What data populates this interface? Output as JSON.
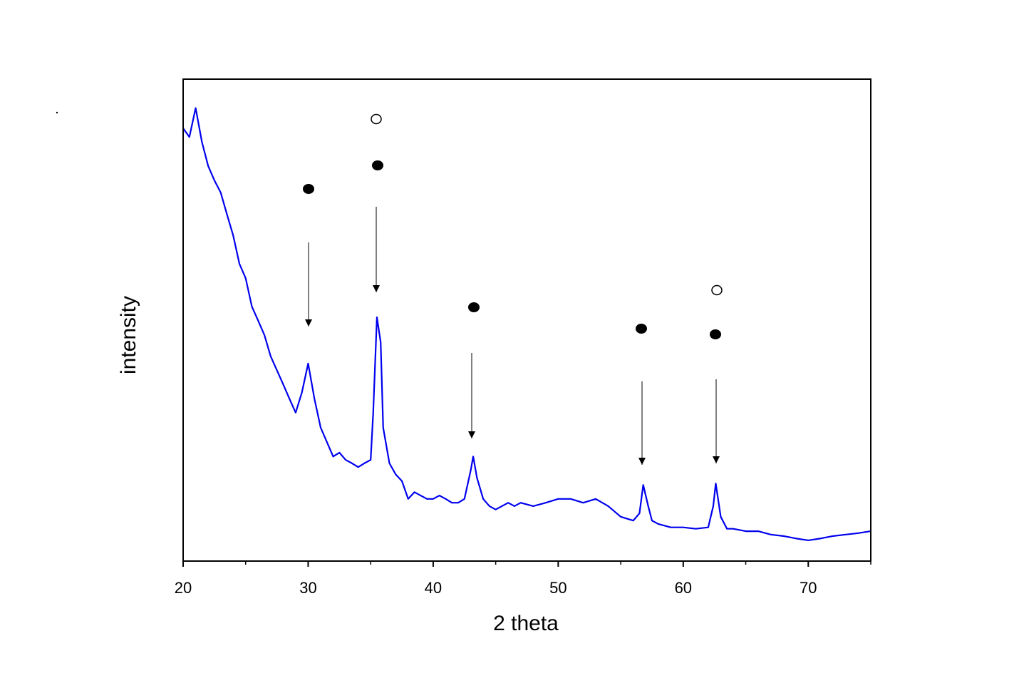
{
  "chart_data": {
    "type": "line",
    "x_label": "2 theta",
    "y_label": "intensity",
    "xlim": [
      20,
      75
    ],
    "ylim": [
      0,
      100
    ],
    "xticks": [
      20,
      30,
      40,
      50,
      60,
      70
    ],
    "xminorticks": [
      25,
      35,
      45,
      55,
      65,
      75
    ],
    "series": [
      {
        "color": "#0000ee",
        "x": [
          20,
          20.5,
          21,
          21.5,
          22,
          22.5,
          23,
          23.5,
          24,
          24.5,
          25,
          25.5,
          26,
          26.5,
          27,
          27.5,
          28,
          28.5,
          29,
          29.5,
          30,
          30.5,
          31,
          31.5,
          32,
          32.5,
          33,
          33.5,
          34,
          34.5,
          35,
          35.2,
          35.5,
          35.8,
          36,
          36.5,
          37,
          37.5,
          38,
          38.5,
          39,
          39.5,
          40,
          40.5,
          41,
          41.5,
          42,
          42.5,
          43,
          43.2,
          43.5,
          44,
          44.5,
          45,
          45.5,
          46,
          46.5,
          47,
          48,
          49,
          50,
          51,
          52,
          53,
          54,
          55,
          56,
          56.5,
          56.8,
          57.2,
          57.5,
          58,
          59,
          60,
          61,
          62,
          62.4,
          62.6,
          63,
          63.5,
          64,
          65,
          66,
          67,
          68,
          69,
          70,
          71,
          72,
          73,
          74,
          75
        ],
        "values": [
          89.8,
          88,
          94,
          87,
          82,
          79,
          76.5,
          72,
          67.6,
          61.7,
          58.7,
          52.8,
          49.9,
          46.9,
          42.5,
          39.6,
          36.7,
          33.7,
          30.8,
          35,
          41,
          33.7,
          27.7,
          24.7,
          21.7,
          22.5,
          21,
          20.3,
          19.5,
          20.3,
          21,
          30.6,
          50.6,
          45.4,
          27.7,
          20.3,
          18,
          16.6,
          12.9,
          14.3,
          13.6,
          12.9,
          12.9,
          13.6,
          12.9,
          12.1,
          12.1,
          12.9,
          18.8,
          21.7,
          17.3,
          12.9,
          11.4,
          10.7,
          11.4,
          12.1,
          11.4,
          12.1,
          11.4,
          12.1,
          12.9,
          12.9,
          12.1,
          12.9,
          11.4,
          9.2,
          8.4,
          9.9,
          15.8,
          11.4,
          8.4,
          7.7,
          7,
          7,
          6.7,
          7,
          11.4,
          16.1,
          9.2,
          6.7,
          6.7,
          6.2,
          6.2,
          5.5,
          5.2,
          4.7,
          4.3,
          4.7,
          5.2,
          5.5,
          5.8,
          6.2
        ]
      }
    ]
  }
}
